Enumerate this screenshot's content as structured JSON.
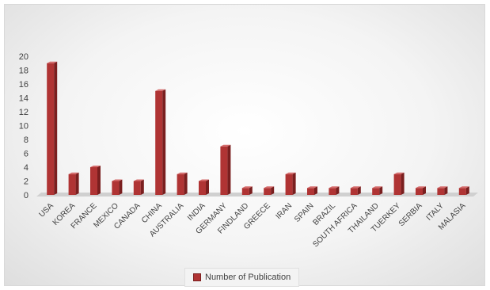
{
  "chart_data": {
    "type": "bar",
    "categories": [
      "USA",
      "KOREA",
      "FRANCE",
      "MEXICO",
      "CANADA",
      "CHINA",
      "AUSTRALIA",
      "INDIA",
      "GERMANY",
      "FINDLAND",
      "GREECE",
      "IRAN",
      "SPAIN",
      "BRAZIL",
      "SOUTH AFRICA",
      "THAILAND",
      "TUERKEY",
      "SERBIA",
      "ITALY",
      "MALASIA"
    ],
    "series": [
      {
        "name": "Number of Publication",
        "values": [
          19,
          3,
          4,
          2,
          2,
          15,
          3,
          2,
          7,
          1,
          1,
          3,
          1,
          1,
          1,
          1,
          3,
          1,
          1,
          1
        ]
      }
    ],
    "ylim": [
      0,
      20
    ],
    "yticks": [
      "0",
      "2",
      "4",
      "6",
      "8",
      "10",
      "12",
      "14",
      "16",
      "18",
      "20"
    ],
    "grid": false,
    "legend_position": "bottom",
    "bar_color": "#b03434",
    "bar_side_color": "#7a1f1f",
    "bar_top_color": "#d46a6a",
    "bar_style": "3d-column"
  }
}
